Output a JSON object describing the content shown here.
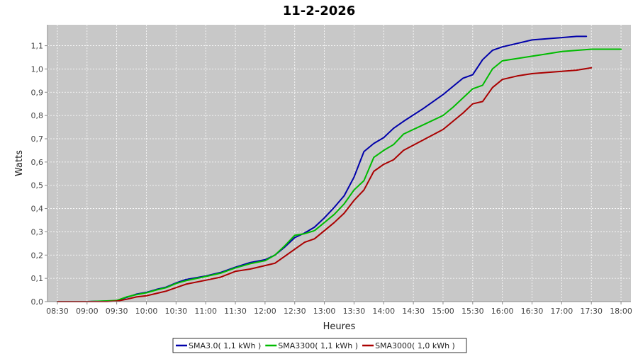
{
  "chart_data": {
    "type": "line",
    "title": "11-2-2026",
    "xlabel": "Heures",
    "ylabel": "Watts",
    "x_ticks": [
      "08:30",
      "09:00",
      "09:30",
      "10:00",
      "10:30",
      "11:00",
      "11:30",
      "12:00",
      "12:30",
      "13:00",
      "13:30",
      "14:00",
      "14:30",
      "15:00",
      "15:30",
      "16:00",
      "16:30",
      "17:00",
      "17:30",
      "18:00"
    ],
    "xlim": [
      "08:20",
      "18:10"
    ],
    "ylim": [
      0,
      1.19
    ],
    "y_ticks": [
      "0,0",
      "0,1",
      "0,2",
      "0,3",
      "0,4",
      "0,5",
      "0,6",
      "0,7",
      "0,8",
      "0,9",
      "1,0",
      "1,1"
    ],
    "grid": true,
    "legend_position": "bottom",
    "plot_background": "#c8c8c8",
    "series": [
      {
        "name": "SMA3.0( 1,1 kWh )",
        "color": "#0000aa",
        "x": [
          "08:30",
          "09:00",
          "09:20",
          "09:30",
          "09:40",
          "09:50",
          "10:00",
          "10:10",
          "10:20",
          "10:30",
          "10:40",
          "11:00",
          "11:15",
          "11:30",
          "11:45",
          "12:00",
          "12:10",
          "12:20",
          "12:30",
          "12:40",
          "12:50",
          "13:00",
          "13:10",
          "13:20",
          "13:30",
          "13:40",
          "13:50",
          "14:00",
          "14:10",
          "14:20",
          "14:40",
          "15:00",
          "15:10",
          "15:20",
          "15:30",
          "15:40",
          "15:50",
          "16:00",
          "16:15",
          "16:30",
          "16:45",
          "17:00",
          "17:15",
          "17:25"
        ],
        "values": [
          0.0,
          0.0,
          0.002,
          0.004,
          0.018,
          0.032,
          0.04,
          0.052,
          0.062,
          0.08,
          0.095,
          0.11,
          0.125,
          0.148,
          0.168,
          0.18,
          0.2,
          0.235,
          0.275,
          0.295,
          0.32,
          0.36,
          0.405,
          0.455,
          0.535,
          0.645,
          0.68,
          0.705,
          0.745,
          0.775,
          0.83,
          0.89,
          0.925,
          0.96,
          0.975,
          1.04,
          1.08,
          1.095,
          1.11,
          1.125,
          1.13,
          1.135,
          1.14,
          1.14
        ]
      },
      {
        "name": "SMA3300( 1,1 kWh )",
        "color": "#00bb00",
        "x": [
          "08:30",
          "09:00",
          "09:20",
          "09:30",
          "09:40",
          "09:50",
          "10:00",
          "10:10",
          "10:20",
          "10:30",
          "10:40",
          "11:00",
          "11:15",
          "11:30",
          "11:45",
          "12:00",
          "12:10",
          "12:20",
          "12:30",
          "12:40",
          "12:50",
          "13:00",
          "13:10",
          "13:20",
          "13:30",
          "13:40",
          "13:50",
          "14:00",
          "14:10",
          "14:20",
          "14:40",
          "15:00",
          "15:10",
          "15:20",
          "15:30",
          "15:40",
          "15:50",
          "16:00",
          "16:15",
          "16:30",
          "16:45",
          "17:00",
          "17:15",
          "17:30",
          "18:00"
        ],
        "values": [
          0.0,
          0.0,
          0.003,
          0.005,
          0.02,
          0.03,
          0.038,
          0.05,
          0.06,
          0.078,
          0.09,
          0.108,
          0.122,
          0.145,
          0.163,
          0.176,
          0.2,
          0.24,
          0.285,
          0.292,
          0.305,
          0.34,
          0.375,
          0.42,
          0.48,
          0.52,
          0.62,
          0.65,
          0.675,
          0.72,
          0.76,
          0.8,
          0.835,
          0.875,
          0.915,
          0.93,
          1.0,
          1.035,
          1.045,
          1.055,
          1.065,
          1.075,
          1.08,
          1.085,
          1.085
        ]
      },
      {
        "name": "SMA3000( 1,0 kWh )",
        "color": "#aa0000",
        "x": [
          "08:30",
          "09:00",
          "09:20",
          "09:30",
          "09:40",
          "09:50",
          "10:00",
          "10:10",
          "10:20",
          "10:30",
          "10:40",
          "11:00",
          "11:15",
          "11:30",
          "11:45",
          "12:00",
          "12:10",
          "12:20",
          "12:30",
          "12:40",
          "12:50",
          "13:00",
          "13:10",
          "13:20",
          "13:30",
          "13:40",
          "13:50",
          "14:00",
          "14:10",
          "14:20",
          "14:40",
          "15:00",
          "15:10",
          "15:20",
          "15:30",
          "15:40",
          "15:50",
          "16:00",
          "16:15",
          "16:30",
          "16:45",
          "17:00",
          "17:15",
          "17:30"
        ],
        "values": [
          0.0,
          0.0,
          0.0,
          0.002,
          0.01,
          0.02,
          0.025,
          0.035,
          0.045,
          0.06,
          0.075,
          0.092,
          0.105,
          0.13,
          0.14,
          0.155,
          0.165,
          0.195,
          0.225,
          0.255,
          0.27,
          0.305,
          0.34,
          0.38,
          0.435,
          0.48,
          0.56,
          0.59,
          0.61,
          0.65,
          0.695,
          0.74,
          0.775,
          0.81,
          0.85,
          0.86,
          0.92,
          0.955,
          0.97,
          0.98,
          0.985,
          0.99,
          0.995,
          1.005
        ]
      }
    ],
    "colors": {
      "axis_line": "#888888",
      "grid_line": "#ffffff",
      "frame": "#000000"
    }
  }
}
